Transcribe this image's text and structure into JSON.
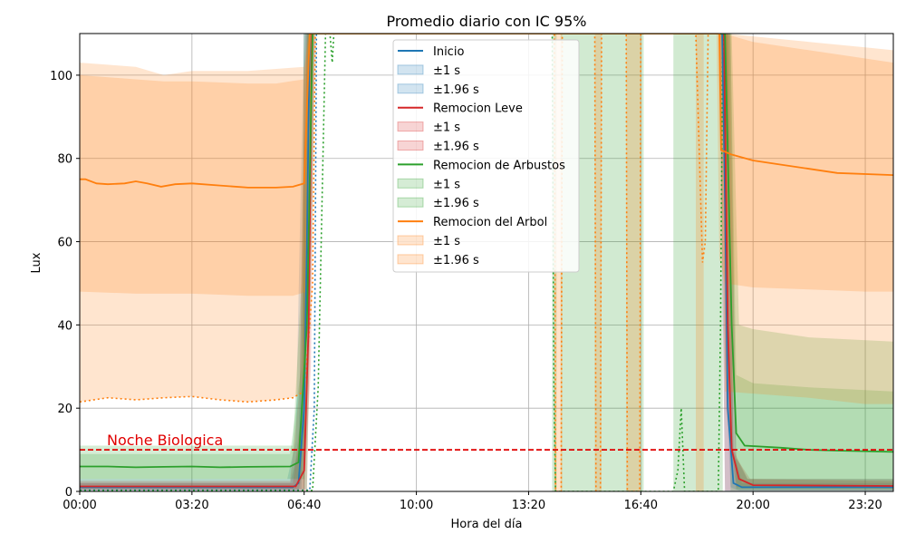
{
  "chart_data": {
    "type": "line",
    "title": "Promedio diario con IC 95%",
    "xlabel": "Hora del día",
    "ylabel": "Lux",
    "xlim_minutes": [
      0,
      1450
    ],
    "ylim": [
      0,
      110
    ],
    "grid": true,
    "legend_position": "upper center",
    "x_ticks": [
      {
        "minute": 0,
        "label": "00:00"
      },
      {
        "minute": 200,
        "label": "03:20"
      },
      {
        "minute": 400,
        "label": "06:40"
      },
      {
        "minute": 600,
        "label": "10:00"
      },
      {
        "minute": 800,
        "label": "13:20"
      },
      {
        "minute": 1000,
        "label": "16:40"
      },
      {
        "minute": 1200,
        "label": "20:00"
      },
      {
        "minute": 1400,
        "label": "23:20"
      }
    ],
    "y_ticks": [
      0,
      20,
      40,
      60,
      80,
      100
    ],
    "threshold": {
      "value": 10,
      "label": "Noche Biologica",
      "color": "#e00000"
    },
    "band_labels": {
      "s1": "±1 s",
      "s196": "±1.96 s"
    },
    "series": [
      {
        "name": "Inicio",
        "color": "#1f77b4",
        "mean": [
          [
            0,
            1
          ],
          [
            380,
            1
          ],
          [
            390,
            2
          ],
          [
            400,
            20
          ],
          [
            405,
            60
          ],
          [
            410,
            110
          ],
          [
            1145,
            110
          ],
          [
            1150,
            70
          ],
          [
            1155,
            20
          ],
          [
            1165,
            2
          ],
          [
            1180,
            1
          ],
          [
            1450,
            1
          ]
        ],
        "upper1": [
          [
            0,
            2
          ],
          [
            375,
            2
          ],
          [
            390,
            10
          ],
          [
            398,
            70
          ],
          [
            402,
            110
          ],
          [
            1155,
            110
          ],
          [
            1165,
            10
          ],
          [
            1180,
            2
          ],
          [
            1450,
            2
          ]
        ],
        "lower1": [
          [
            0,
            0.2
          ],
          [
            390,
            0.2
          ],
          [
            398,
            5
          ],
          [
            405,
            40
          ],
          [
            410,
            110
          ],
          [
            1145,
            110
          ],
          [
            1150,
            30
          ],
          [
            1160,
            1
          ],
          [
            1175,
            0.2
          ],
          [
            1450,
            0.2
          ]
        ],
        "upper196": [
          [
            0,
            3
          ],
          [
            370,
            3
          ],
          [
            385,
            12
          ],
          [
            395,
            80
          ],
          [
            400,
            110
          ],
          [
            1160,
            110
          ],
          [
            1170,
            8
          ],
          [
            1190,
            3
          ],
          [
            1450,
            3
          ]
        ],
        "lower196": [
          [
            0,
            0
          ],
          [
            395,
            0
          ],
          [
            415,
            110
          ],
          [
            1140,
            110
          ],
          [
            1150,
            0
          ],
          [
            1450,
            0
          ]
        ],
        "lower_dotted": [
          [
            0,
            0.3
          ],
          [
            410,
            0.3
          ],
          [
            418,
            20
          ],
          [
            422,
            110
          ]
        ]
      },
      {
        "name": "Remocion Leve",
        "color": "#d62728",
        "mean": [
          [
            0,
            1.2
          ],
          [
            385,
            1.2
          ],
          [
            400,
            5
          ],
          [
            408,
            40
          ],
          [
            414,
            110
          ],
          [
            1148,
            110
          ],
          [
            1155,
            40
          ],
          [
            1162,
            10
          ],
          [
            1175,
            3
          ],
          [
            1200,
            1.5
          ],
          [
            1450,
            1.3
          ]
        ],
        "upper1": [
          [
            0,
            2
          ],
          [
            380,
            2
          ],
          [
            396,
            20
          ],
          [
            405,
            110
          ],
          [
            1155,
            110
          ],
          [
            1165,
            10
          ],
          [
            1190,
            3
          ],
          [
            1450,
            2.5
          ]
        ],
        "lower1": [
          [
            0,
            0.5
          ],
          [
            400,
            0.5
          ],
          [
            412,
            30
          ],
          [
            418,
            110
          ],
          [
            1145,
            110
          ],
          [
            1152,
            20
          ],
          [
            1170,
            1
          ],
          [
            1450,
            0.7
          ]
        ],
        "upper196": [
          [
            0,
            2.5
          ],
          [
            375,
            2.5
          ],
          [
            392,
            25
          ],
          [
            402,
            110
          ],
          [
            1158,
            110
          ],
          [
            1170,
            8
          ],
          [
            1195,
            3
          ],
          [
            1450,
            3
          ]
        ],
        "lower196": [
          [
            0,
            0.2
          ],
          [
            405,
            0.2
          ],
          [
            420,
            110
          ],
          [
            1140,
            110
          ],
          [
            1150,
            0.2
          ],
          [
            1450,
            0.2
          ]
        ]
      },
      {
        "name": "Remocion de Arbustos",
        "color": "#2ca02c",
        "mean": [
          [
            0,
            6
          ],
          [
            50,
            6
          ],
          [
            100,
            5.8
          ],
          [
            150,
            5.9
          ],
          [
            200,
            6
          ],
          [
            250,
            5.8
          ],
          [
            300,
            5.9
          ],
          [
            375,
            6
          ],
          [
            390,
            7
          ],
          [
            405,
            40
          ],
          [
            415,
            110
          ],
          [
            1150,
            110
          ],
          [
            1162,
            40
          ],
          [
            1170,
            14
          ],
          [
            1185,
            11
          ],
          [
            1250,
            10.5
          ],
          [
            1300,
            10
          ],
          [
            1350,
            9.8
          ],
          [
            1450,
            9.5
          ]
        ],
        "upper1": [
          [
            0,
            9
          ],
          [
            200,
            9
          ],
          [
            375,
            9
          ],
          [
            395,
            30
          ],
          [
            405,
            110
          ],
          [
            1160,
            110
          ],
          [
            1170,
            28
          ],
          [
            1200,
            26
          ],
          [
            1300,
            25
          ],
          [
            1450,
            24
          ]
        ],
        "lower1": [
          [
            0,
            3
          ],
          [
            380,
            3
          ],
          [
            400,
            3
          ],
          [
            415,
            110
          ],
          [
            1150,
            110
          ],
          [
            1170,
            0.5
          ],
          [
            1450,
            0.5
          ]
        ],
        "upper196": [
          [
            0,
            11
          ],
          [
            380,
            11
          ],
          [
            395,
            50
          ],
          [
            400,
            110
          ],
          [
            1162,
            110
          ],
          [
            1175,
            40
          ],
          [
            1200,
            39
          ],
          [
            1300,
            37
          ],
          [
            1450,
            36
          ]
        ],
        "lower196": [
          [
            0,
            0.5
          ],
          [
            405,
            0.5
          ],
          [
            420,
            110
          ],
          [
            1148,
            110
          ],
          [
            1160,
            0.2
          ],
          [
            1450,
            0.2
          ]
        ],
        "extra_fill": [
          [
            842,
            850
          ],
          [
            857,
            1005
          ],
          [
            1058,
            1146
          ]
        ],
        "lower_dotted": [
          [
            0,
            0.2
          ],
          [
            415,
            0.2
          ],
          [
            425,
            25
          ],
          [
            432,
            70
          ],
          [
            438,
            110
          ],
          [
            842,
            110
          ],
          [
            845,
            25
          ],
          [
            848,
            0
          ],
          [
            1058,
            0
          ],
          [
            1066,
            5
          ],
          [
            1072,
            20
          ],
          [
            1078,
            0
          ],
          [
            1138,
            0
          ],
          [
            1142,
            40
          ],
          [
            1146,
            110
          ]
        ],
        "upper_dotted": [
          [
            435,
            110
          ],
          [
            446,
            110
          ],
          [
            450,
            103
          ],
          [
            453,
            110
          ]
        ]
      },
      {
        "name": "Remocion del Arbol",
        "color": "#ff7f0e",
        "mean": [
          [
            0,
            75
          ],
          [
            10,
            75
          ],
          [
            30,
            74
          ],
          [
            50,
            73.8
          ],
          [
            80,
            74
          ],
          [
            100,
            74.5
          ],
          [
            120,
            74
          ],
          [
            145,
            73.2
          ],
          [
            170,
            73.8
          ],
          [
            200,
            74
          ],
          [
            250,
            73.5
          ],
          [
            300,
            73
          ],
          [
            350,
            73
          ],
          [
            380,
            73.2
          ],
          [
            400,
            74
          ],
          [
            410,
            110
          ],
          [
            1140,
            110
          ],
          [
            1143,
            82
          ],
          [
            1160,
            81
          ],
          [
            1200,
            79.5
          ],
          [
            1250,
            78.5
          ],
          [
            1300,
            77.5
          ],
          [
            1350,
            76.5
          ],
          [
            1450,
            76
          ]
        ],
        "upper1": [
          [
            0,
            100
          ],
          [
            100,
            99
          ],
          [
            150,
            98.5
          ],
          [
            200,
            98.5
          ],
          [
            300,
            98
          ],
          [
            350,
            98
          ],
          [
            400,
            99
          ],
          [
            408,
            110
          ],
          [
            1148,
            110
          ],
          [
            1200,
            108
          ],
          [
            1300,
            106
          ],
          [
            1400,
            104
          ],
          [
            1450,
            103
          ]
        ],
        "lower1": [
          [
            0,
            48
          ],
          [
            100,
            47.5
          ],
          [
            200,
            47.5
          ],
          [
            300,
            47
          ],
          [
            380,
            47
          ],
          [
            405,
            48
          ],
          [
            418,
            110
          ],
          [
            1135,
            110
          ],
          [
            1140,
            56
          ],
          [
            1150,
            50
          ],
          [
            1200,
            49
          ],
          [
            1300,
            48.5
          ],
          [
            1400,
            48
          ],
          [
            1450,
            48
          ]
        ],
        "upper196": [
          [
            0,
            103
          ],
          [
            100,
            102
          ],
          [
            150,
            100
          ],
          [
            200,
            101
          ],
          [
            300,
            101
          ],
          [
            400,
            102
          ],
          [
            408,
            110
          ],
          [
            1150,
            110
          ],
          [
            1300,
            108
          ],
          [
            1450,
            106
          ]
        ],
        "lower196": [
          [
            0,
            21.5
          ],
          [
            50,
            22.5
          ],
          [
            100,
            22
          ],
          [
            150,
            22.5
          ],
          [
            200,
            22.8
          ],
          [
            250,
            22
          ],
          [
            300,
            21.5
          ],
          [
            350,
            22
          ],
          [
            380,
            22.5
          ],
          [
            400,
            24
          ],
          [
            415,
            110
          ],
          [
            1140,
            110
          ],
          [
            1150,
            24
          ],
          [
            1200,
            23.5
          ],
          [
            1300,
            22.5
          ],
          [
            1400,
            21
          ],
          [
            1450,
            21
          ]
        ],
        "extra_fill": [
          [
            846,
            860
          ],
          [
            918,
            930
          ],
          [
            974,
            1000
          ],
          [
            1098,
            1112
          ]
        ],
        "lower_dotted": [
          [
            0,
            21.5
          ],
          [
            50,
            22.5
          ],
          [
            100,
            22
          ],
          [
            150,
            22.5
          ],
          [
            200,
            22.8
          ],
          [
            250,
            22
          ],
          [
            300,
            21.5
          ],
          [
            350,
            22
          ],
          [
            380,
            22.5
          ],
          [
            400,
            24
          ],
          [
            410,
            40
          ],
          [
            415,
            50
          ],
          [
            420,
            110
          ],
          [
            846,
            110
          ],
          [
            848,
            0
          ],
          [
            858,
            0
          ],
          [
            860,
            110
          ],
          [
            918,
            110
          ],
          [
            920,
            0
          ],
          [
            928,
            0
          ],
          [
            930,
            110
          ],
          [
            974,
            110
          ],
          [
            976,
            0
          ],
          [
            998,
            0
          ],
          [
            1000,
            110
          ],
          [
            1098,
            110
          ],
          [
            1110,
            55
          ],
          [
            1115,
            60
          ],
          [
            1120,
            110
          ]
        ]
      }
    ]
  }
}
